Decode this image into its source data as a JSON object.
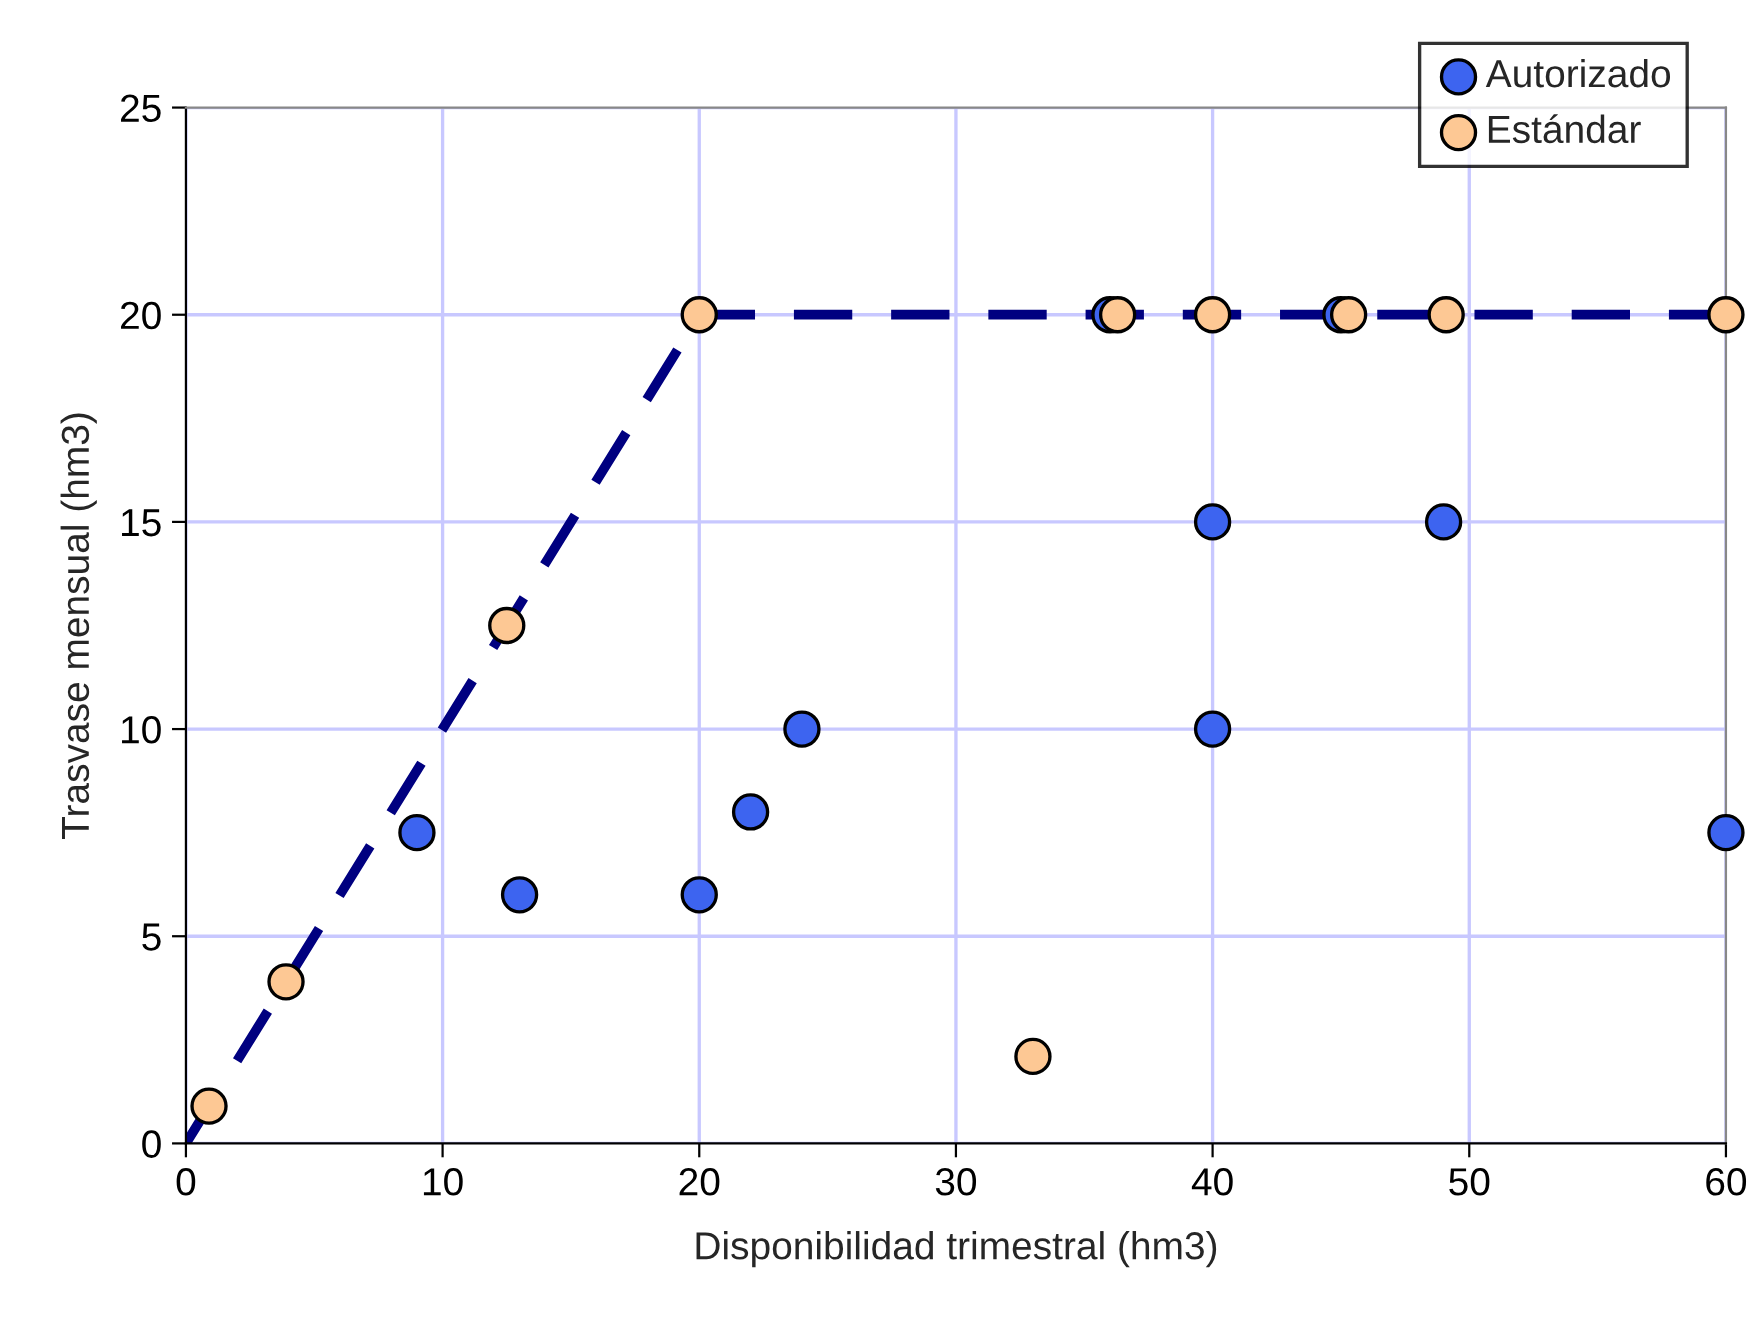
{
  "chart_data": {
    "type": "scatter",
    "xlabel": "Disponibilidad trimestral (hm3)",
    "ylabel": "Trasvase mensual (hm3)",
    "xlim": [
      0,
      60
    ],
    "xticks": [
      0,
      10,
      20,
      30,
      40,
      50,
      60
    ],
    "ylim": [
      0,
      25
    ],
    "yticks": [
      0,
      5,
      10,
      15,
      20,
      25
    ],
    "grid": true,
    "legend": "top right",
    "marker": "circle",
    "series": [
      {
        "type": "line",
        "color": "#000080",
        "line_style": "dashed",
        "marker": "none",
        "x": [
          0,
          20,
          60
        ],
        "values": [
          0,
          20,
          20
        ]
      },
      {
        "name": "Autorizado",
        "color": "#3d64f0",
        "x": [
          9,
          13,
          20,
          22,
          24,
          36,
          40,
          40,
          45,
          49,
          60
        ],
        "values": [
          7.5,
          6,
          6,
          8,
          10,
          20,
          15,
          10,
          20,
          15,
          7.5
        ]
      },
      {
        "name": "Estándar",
        "color": "#fdc894",
        "x": [
          0.9,
          3.9,
          12.5,
          20,
          33,
          36.3,
          40,
          45.3,
          49.1,
          60
        ],
        "values": [
          0.9,
          3.9,
          12.5,
          20,
          2.1,
          20,
          20,
          20,
          20,
          20
        ]
      }
    ]
  }
}
